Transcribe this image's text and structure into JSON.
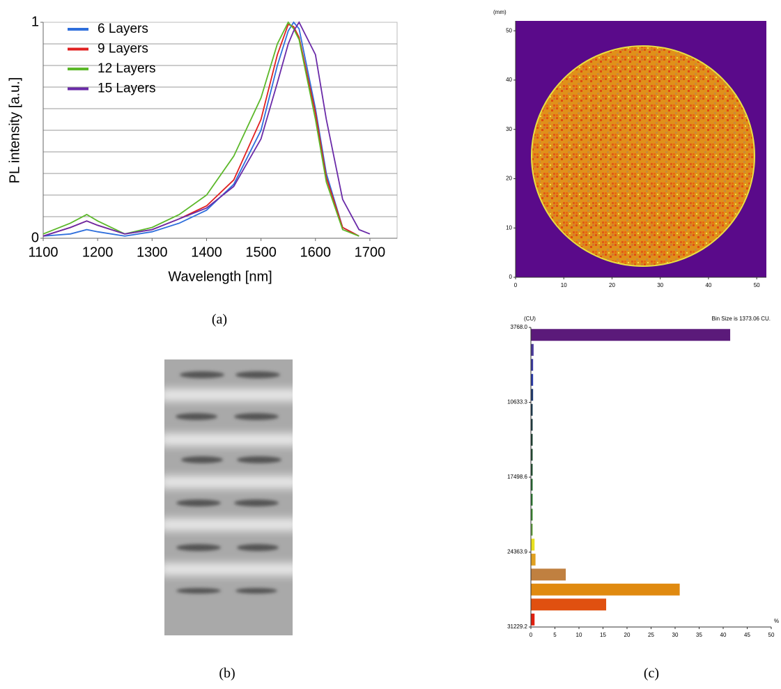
{
  "captions": [
    "(a)",
    "(b)",
    "(c)"
  ],
  "chart_data": [
    {
      "type": "line",
      "ylabel": "PL intensity [a.u.]",
      "xlabel": "Wavelength [nm]",
      "x": [
        1100,
        1150,
        1180,
        1200,
        1250,
        1300,
        1350,
        1400,
        1450,
        1500,
        1530,
        1550,
        1560,
        1570,
        1600,
        1620,
        1650,
        1680,
        1700
      ],
      "xlim": [
        1100,
        1750
      ],
      "xticks": [
        1100,
        1200,
        1300,
        1400,
        1500,
        1600,
        1700
      ],
      "ylim": [
        0,
        1
      ],
      "yticks": [
        0,
        1
      ],
      "ygrid": [
        0.1,
        0.2,
        0.3,
        0.4,
        0.5,
        0.6,
        0.7,
        0.8,
        0.9
      ],
      "legend": "upper left",
      "series": [
        {
          "name": "6 Layers",
          "color": "#2f6fdc",
          "values": [
            0.01,
            0.02,
            0.04,
            0.03,
            0.01,
            0.03,
            0.07,
            0.13,
            0.25,
            0.5,
            0.8,
            0.96,
            1.0,
            0.97,
            0.6,
            0.3,
            0.05,
            0.01,
            null
          ]
        },
        {
          "name": "9 Layers",
          "color": "#e02020",
          "values": [
            0.01,
            0.05,
            0.08,
            0.06,
            0.02,
            0.04,
            0.09,
            0.15,
            0.27,
            0.55,
            0.85,
            0.99,
            0.98,
            0.93,
            0.58,
            0.28,
            0.05,
            0.01,
            null
          ]
        },
        {
          "name": "12 Layers",
          "color": "#5cb82a",
          "values": [
            0.02,
            0.07,
            0.11,
            0.08,
            0.02,
            0.05,
            0.11,
            0.2,
            0.38,
            0.65,
            0.9,
            1.0,
            0.97,
            0.92,
            0.55,
            0.26,
            0.04,
            0.01,
            null
          ]
        },
        {
          "name": "15 Layers",
          "color": "#6a2aa8",
          "values": [
            0.01,
            0.05,
            0.08,
            0.06,
            0.02,
            0.04,
            0.09,
            0.14,
            0.24,
            0.46,
            0.72,
            0.9,
            0.96,
            1.0,
            0.85,
            0.55,
            0.18,
            0.04,
            0.02
          ]
        }
      ]
    },
    {
      "type": "heatmap",
      "yunit": "(mm)",
      "xlim": [
        0,
        52
      ],
      "ylim": [
        0,
        52
      ],
      "xticks": [
        0,
        10,
        20,
        30,
        40,
        50
      ],
      "yticks": [
        0,
        10,
        20,
        30,
        40,
        50
      ]
    },
    {
      "type": "histogram",
      "orientation": "horizontal",
      "yunit": "(CU)",
      "note": "Bin Size is 1373.06 CU.",
      "xlabel": "%",
      "bins": [
        3768.0,
        5141.06,
        6514.12,
        7887.18,
        9260.24,
        10633.3,
        12006.36,
        13379.42,
        14752.48,
        16125.54,
        17498.6,
        18871.66,
        20244.72,
        21617.78,
        22990.84,
        24363.9,
        25736.96,
        27110.02,
        28483.08,
        29856.14,
        31229.2
      ],
      "values": [
        41.5,
        0.6,
        0.5,
        0.5,
        0.5,
        0.4,
        0.4,
        0.4,
        0.4,
        0.4,
        0.4,
        0.4,
        0.4,
        0.4,
        0.8,
        1.0,
        7.3,
        31.0,
        15.7,
        0.8
      ],
      "colors": [
        "#5b1a7a",
        "#4b3a9a",
        "#3a3aa0",
        "#2a3aa8",
        "#203a70",
        "#1a3a50",
        "#1a3a40",
        "#1a4030",
        "#1e4a30",
        "#205030",
        "#246a30",
        "#2a7a30",
        "#3a8a30",
        "#60a040",
        "#e8e020",
        "#e0a020",
        "#c08040",
        "#e08a10",
        "#e05010",
        "#e02010"
      ],
      "xlim": [
        0,
        50
      ],
      "xticks": [
        0,
        5,
        10,
        15,
        20,
        25,
        30,
        35,
        40,
        45,
        50
      ],
      "ylim": [
        3768.0,
        31229.2
      ],
      "yticks": [
        {
          "value": 3768.0,
          "label": "3768.0"
        },
        10633.3,
        17498.6,
        24363.9,
        31229.2
      ]
    }
  ]
}
